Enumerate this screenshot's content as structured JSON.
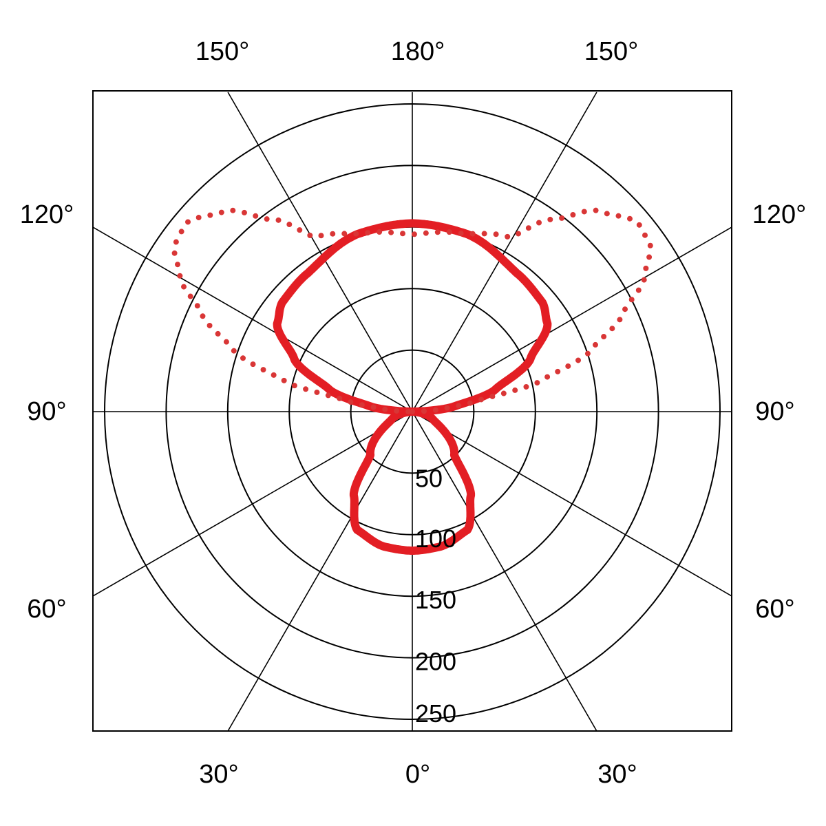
{
  "chart_data": {
    "type": "polar-line",
    "title": "",
    "angle_labels": [
      {
        "text": "180°",
        "angle": 180,
        "side": "top"
      },
      {
        "text": "150°",
        "angle": 150,
        "side": "left"
      },
      {
        "text": "150°",
        "angle": 150,
        "side": "right"
      },
      {
        "text": "120°",
        "angle": 120,
        "side": "left"
      },
      {
        "text": "120°",
        "angle": 120,
        "side": "right"
      },
      {
        "text": "90°",
        "angle": 90,
        "side": "left"
      },
      {
        "text": "90°",
        "angle": 90,
        "side": "right"
      },
      {
        "text": "60°",
        "angle": 60,
        "side": "left"
      },
      {
        "text": "60°",
        "angle": 60,
        "side": "right"
      },
      {
        "text": "30°",
        "angle": 30,
        "side": "left"
      },
      {
        "text": "30°",
        "angle": 30,
        "side": "right"
      },
      {
        "text": "0°",
        "angle": 0,
        "side": "bottom"
      }
    ],
    "radial_ticks": [
      "50",
      "100",
      "150",
      "200",
      "250"
    ],
    "rlim": [
      0,
      250
    ],
    "spoke_step_deg": 30,
    "grid": true,
    "series": [
      {
        "style": "solid",
        "color": "#e31e24",
        "points": [
          [
            0,
            113
          ],
          [
            12,
            112
          ],
          [
            25,
            106
          ],
          [
            35,
            83
          ],
          [
            44,
            49
          ],
          [
            69,
            18
          ],
          [
            90,
            0
          ],
          [
            97,
            34
          ],
          [
            105,
            70
          ],
          [
            114,
            105
          ],
          [
            123,
            131
          ],
          [
            130,
            138
          ],
          [
            143,
            141
          ],
          [
            163,
            151
          ],
          [
            180,
            153
          ]
        ]
      },
      {
        "style": "dotted",
        "color": "#d93636",
        "points": [
          [
            90,
            0
          ],
          [
            95,
            23
          ],
          [
            100,
            57
          ],
          [
            103,
            104
          ],
          [
            109,
            154
          ],
          [
            115,
            189
          ],
          [
            120,
            218
          ],
          [
            125,
            236
          ],
          [
            130,
            239
          ],
          [
            137,
            223
          ],
          [
            144,
            193
          ],
          [
            151,
            162
          ],
          [
            165,
            150
          ],
          [
            180,
            144
          ]
        ]
      }
    ]
  }
}
